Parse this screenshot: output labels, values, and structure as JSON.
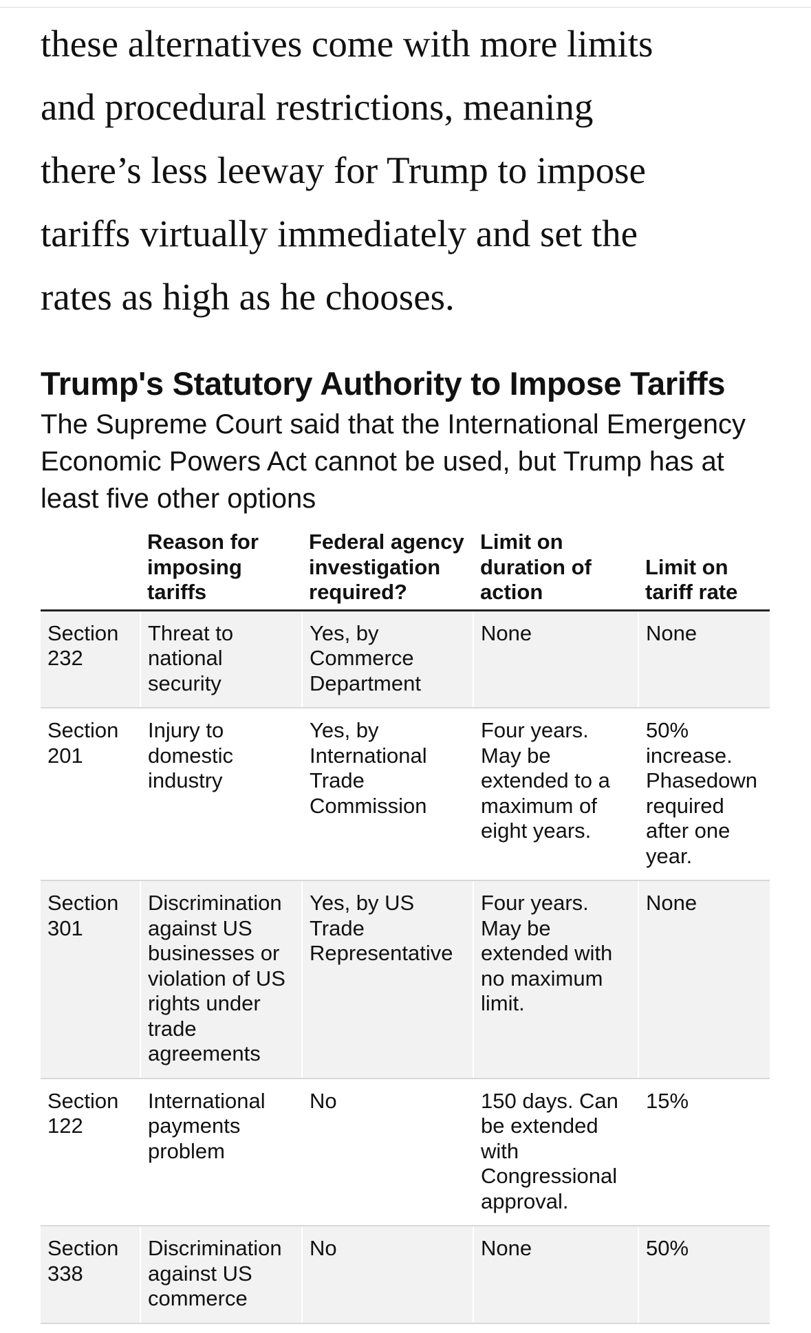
{
  "article": {
    "paragraph_lines": [
      "these alternatives come with more limits",
      "and procedural restrictions, meaning",
      "there’s less leeway for Trump to impose",
      "tariffs virtually immediately and set the",
      "rates as high as he chooses."
    ]
  },
  "table": {
    "title": "Trump's Statutory Authority to Impose Tariffs",
    "subtitle": "The Supreme Court said that the International Emergency Economic Powers Act cannot be used, but Trump has at least five other options",
    "headers": [
      "Reason for imposing tariffs",
      "Federal agency investigation required?",
      "Limit on duration of action",
      "Limit on tariff rate"
    ],
    "rows": [
      [
        "Section 232",
        "Threat to national security",
        "Yes, by Commerce Department",
        "None",
        "None"
      ],
      [
        "Section 201",
        "Injury to domestic industry",
        "Yes, by International Trade Commission",
        "Four years. May be extended to a maximum of eight years.",
        "50% increase. Phasedown required after one year."
      ],
      [
        "Section 301",
        "Discrimination against US businesses or violation of US rights under trade agreements",
        "Yes, by US Trade Representative",
        "Four years. May be extended with no maximum limit.",
        "None"
      ],
      [
        "Section 122",
        "International payments problem",
        "No",
        "150 days. Can be extended with Congressional approval.",
        "15%"
      ],
      [
        "Section 338",
        "Discrimination against US commerce",
        "No",
        "None",
        "50%"
      ]
    ]
  }
}
